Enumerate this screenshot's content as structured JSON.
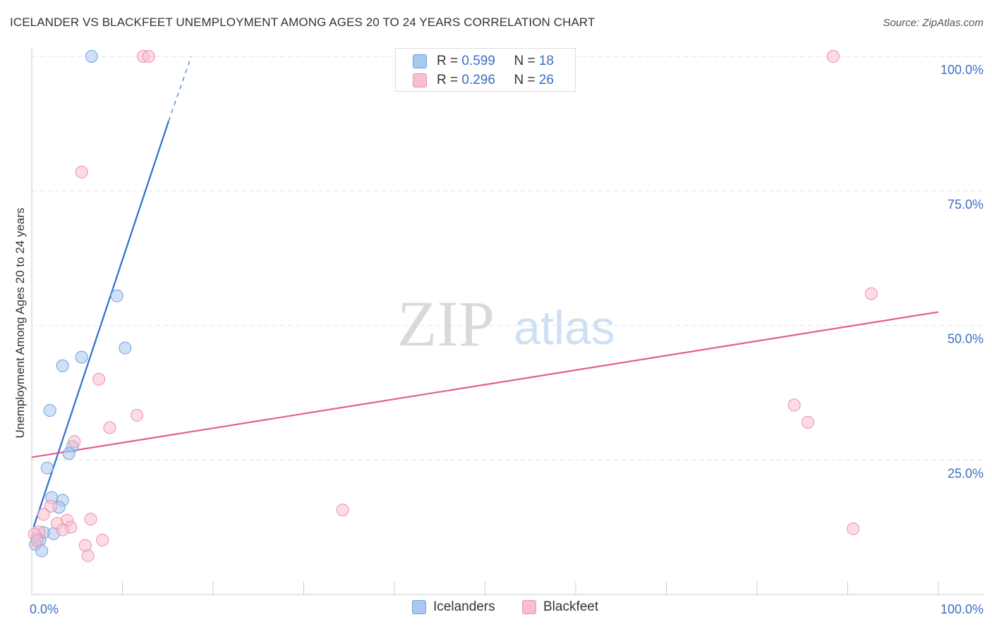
{
  "title": "ICELANDER VS BLACKFEET UNEMPLOYMENT AMONG AGES 20 TO 24 YEARS CORRELATION CHART",
  "source": "Source: ZipAtlas.com",
  "watermark": {
    "zip": "ZIP",
    "atlas": "atlas"
  },
  "stats_legend": [
    {
      "r_label": "R = ",
      "r_value": "0.599",
      "n_label": "N = ",
      "n_value": "18",
      "color": "#a9c8f0",
      "border": "#6f9fe0"
    },
    {
      "r_label": "R = ",
      "r_value": "0.296",
      "n_label": "N = ",
      "n_value": "26",
      "color": "#f8bfd0",
      "border": "#ee8fab"
    }
  ],
  "bottom_legend": [
    {
      "label": "Icelanders",
      "color": "#a9c8f0",
      "border": "#6f9fe0"
    },
    {
      "label": "Blackfeet",
      "color": "#f8bfd0",
      "border": "#ee8fab"
    }
  ],
  "chart_data": {
    "type": "scatter",
    "title": "ICELANDER VS BLACKFEET UNEMPLOYMENT AMONG AGES 20 TO 24 YEARS CORRELATION CHART",
    "xlabel": "",
    "ylabel": "Unemployment Among Ages 20 to 24 years",
    "xlim": [
      0,
      100
    ],
    "ylim": [
      0,
      100
    ],
    "x_tick_labels": [
      "0.0%",
      "100.0%"
    ],
    "y_tick_labels": [
      {
        "value": 25,
        "label": "25.0%"
      },
      {
        "value": 50,
        "label": "50.0%"
      },
      {
        "value": 75,
        "label": "75.0%"
      },
      {
        "value": 100,
        "label": "100.0%"
      }
    ],
    "series": [
      {
        "name": "Icelanders",
        "color": "#6f9fe0",
        "fill": "#a9c8f0",
        "line_color": "#2f6fcf",
        "r": 0.599,
        "n": 18,
        "trend": {
          "x0": 0.2,
          "y0": 12.5,
          "x1": 15.1,
          "y1": 88.0,
          "dash_to_x": 17.6,
          "dash_to_y": 100.0
        },
        "points": [
          [
            6.6,
            100.0
          ],
          [
            9.4,
            55.5
          ],
          [
            10.3,
            45.8
          ],
          [
            5.5,
            44.1
          ],
          [
            3.4,
            42.5
          ],
          [
            2.0,
            34.2
          ],
          [
            4.5,
            27.5
          ],
          [
            4.1,
            26.2
          ],
          [
            1.7,
            23.5
          ],
          [
            2.2,
            18.0
          ],
          [
            3.4,
            17.5
          ],
          [
            3.0,
            16.2
          ],
          [
            2.4,
            11.3
          ],
          [
            1.3,
            11.5
          ],
          [
            0.6,
            10.5
          ],
          [
            0.9,
            10.1
          ],
          [
            0.4,
            9.3
          ],
          [
            1.1,
            8.1
          ]
        ]
      },
      {
        "name": "Blackfeet",
        "color": "#ee8fab",
        "fill": "#f8bfd0",
        "line_color": "#e0608a",
        "r": 0.296,
        "n": 26,
        "trend": {
          "x0": 0.0,
          "y0": 25.5,
          "x1": 100.0,
          "y1": 52.5
        },
        "points": [
          [
            12.3,
            100.0
          ],
          [
            12.9,
            100.0
          ],
          [
            88.4,
            100.0
          ],
          [
            5.5,
            78.5
          ],
          [
            92.6,
            55.9
          ],
          [
            7.4,
            40.0
          ],
          [
            11.6,
            33.3
          ],
          [
            8.6,
            31.0
          ],
          [
            84.1,
            35.2
          ],
          [
            85.6,
            32.0
          ],
          [
            4.7,
            28.4
          ],
          [
            34.3,
            15.7
          ],
          [
            2.1,
            16.4
          ],
          [
            1.3,
            14.9
          ],
          [
            6.5,
            14.0
          ],
          [
            3.9,
            13.8
          ],
          [
            2.8,
            13.2
          ],
          [
            4.3,
            12.5
          ],
          [
            3.4,
            12.0
          ],
          [
            0.8,
            11.6
          ],
          [
            0.3,
            11.2
          ],
          [
            0.6,
            10.0
          ],
          [
            7.8,
            10.1
          ],
          [
            5.9,
            9.1
          ],
          [
            6.2,
            7.2
          ],
          [
            90.6,
            12.2
          ]
        ]
      }
    ]
  }
}
